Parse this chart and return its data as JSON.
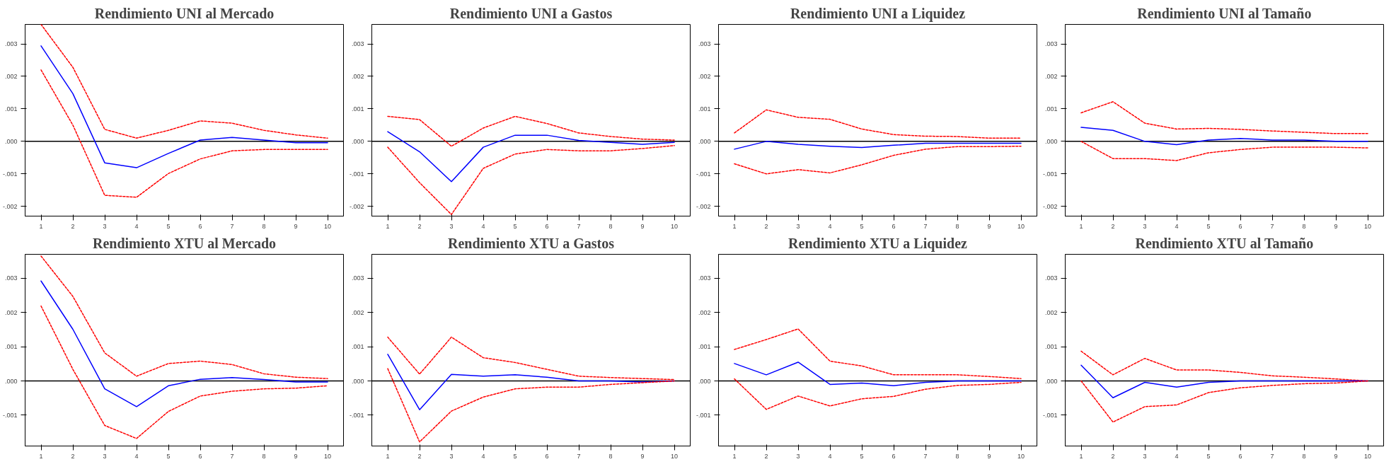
{
  "chart_data": [
    {
      "type": "line",
      "title": "Rendimiento UNI al Mercado",
      "x": [
        1,
        2,
        3,
        4,
        5,
        6,
        7,
        8,
        9,
        10
      ],
      "xlim": [
        0.5,
        10.5
      ],
      "xticks": [
        1,
        2,
        3,
        4,
        5,
        6,
        7,
        8,
        9,
        10
      ],
      "ylim": [
        -0.0023,
        0.0036
      ],
      "yticks": [
        {
          "value": -0.002,
          "label": "-.002"
        },
        {
          "value": -0.001,
          "label": "-.001"
        },
        {
          "value": 0,
          "label": ".000"
        },
        {
          "value": 0.001,
          "label": ".001"
        },
        {
          "value": 0.002,
          "label": ".002"
        },
        {
          "value": 0.003,
          "label": ".003"
        }
      ],
      "grid": false,
      "ref_lines": [
        {
          "axis": "y",
          "value": 0,
          "color": "#000000",
          "line_style": "solid"
        }
      ],
      "series": [
        {
          "color": "#ff0000",
          "line_style": "dotted",
          "values": [
            0.0036,
            0.00228,
            0.00037,
            0.0001,
            0.00034,
            0.00063,
            0.00056,
            0.00034,
            0.0002,
            0.0001
          ]
        },
        {
          "color": "#0000ff",
          "line_style": "solid",
          "values": [
            0.00294,
            0.00147,
            -0.00066,
            -0.00081,
            -0.00037,
            4e-05,
            0.00012,
            4e-05,
            -4e-05,
            -4e-05
          ]
        },
        {
          "color": "#ff0000",
          "line_style": "dotted",
          "values": [
            0.0022,
            0.0005,
            -0.00166,
            -0.00172,
            -0.00099,
            -0.00054,
            -0.00029,
            -0.00025,
            -0.00025,
            -0.00025
          ]
        }
      ]
    },
    {
      "type": "line",
      "title": "Rendimiento UNI a Gastos",
      "x": [
        1,
        2,
        3,
        4,
        5,
        6,
        7,
        8,
        9,
        10
      ],
      "xlim": [
        0.5,
        10.5
      ],
      "xticks": [
        1,
        2,
        3,
        4,
        5,
        6,
        7,
        8,
        9,
        10
      ],
      "ylim": [
        -0.0023,
        0.0036
      ],
      "yticks": [
        {
          "value": -0.002,
          "label": "-.002"
        },
        {
          "value": -0.001,
          "label": "-.001"
        },
        {
          "value": 0,
          "label": ".000"
        },
        {
          "value": 0.001,
          "label": ".001"
        },
        {
          "value": 0.002,
          "label": ".002"
        },
        {
          "value": 0.003,
          "label": ".003"
        }
      ],
      "grid": false,
      "ref_lines": [
        {
          "axis": "y",
          "value": 0,
          "color": "#000000",
          "line_style": "solid"
        }
      ],
      "series": [
        {
          "color": "#ff0000",
          "line_style": "dotted",
          "values": [
            0.00077,
            0.00067,
            -0.00015,
            0.00041,
            0.00077,
            0.00055,
            0.00026,
            0.00015,
            7e-05,
            4e-05
          ]
        },
        {
          "color": "#0000ff",
          "line_style": "solid",
          "values": [
            0.0003,
            -0.00032,
            -0.00124,
            -0.00018,
            0.00019,
            0.00019,
            3e-05,
            -3e-05,
            -9e-05,
            -3e-05
          ]
        },
        {
          "color": "#ff0000",
          "line_style": "dotted",
          "values": [
            -0.00018,
            -0.00127,
            -0.00225,
            -0.00083,
            -0.00039,
            -0.00025,
            -0.00029,
            -0.00029,
            -0.00022,
            -0.00013
          ]
        }
      ]
    },
    {
      "type": "line",
      "title": "Rendimiento UNI a Liquidez",
      "x": [
        1,
        2,
        3,
        4,
        5,
        6,
        7,
        8,
        9,
        10
      ],
      "xlim": [
        0.5,
        10.5
      ],
      "xticks": [
        1,
        2,
        3,
        4,
        5,
        6,
        7,
        8,
        9,
        10
      ],
      "ylim": [
        -0.0023,
        0.0036
      ],
      "yticks": [
        {
          "value": -0.002,
          "label": "-.002"
        },
        {
          "value": -0.001,
          "label": "-.001"
        },
        {
          "value": 0,
          "label": ".000"
        },
        {
          "value": 0.001,
          "label": ".001"
        },
        {
          "value": 0.002,
          "label": ".002"
        },
        {
          "value": 0.003,
          "label": ".003"
        }
      ],
      "grid": false,
      "ref_lines": [
        {
          "axis": "y",
          "value": 0,
          "color": "#000000",
          "line_style": "solid"
        }
      ],
      "series": [
        {
          "color": "#ff0000",
          "line_style": "dotted",
          "values": [
            0.00026,
            0.00097,
            0.00074,
            0.00068,
            0.00038,
            0.00021,
            0.00016,
            0.00015,
            0.0001,
            0.0001
          ]
        },
        {
          "color": "#0000ff",
          "line_style": "solid",
          "values": [
            -0.00024,
            0,
            -9e-05,
            -0.00015,
            -0.00019,
            -0.00012,
            -6e-05,
            -6e-05,
            -6e-05,
            -6e-05
          ]
        },
        {
          "color": "#ff0000",
          "line_style": "dotted",
          "values": [
            -0.00069,
            -0.001,
            -0.00087,
            -0.00097,
            -0.00072,
            -0.00043,
            -0.00024,
            -0.00016,
            -0.00016,
            -0.00015
          ]
        }
      ]
    },
    {
      "type": "line",
      "title": "Rendimiento UNI al Tamaño",
      "x": [
        1,
        2,
        3,
        4,
        5,
        6,
        7,
        8,
        9,
        10
      ],
      "xlim": [
        0.5,
        10.5
      ],
      "xticks": [
        1,
        2,
        3,
        4,
        5,
        6,
        7,
        8,
        9,
        10
      ],
      "ylim": [
        -0.0023,
        0.0036
      ],
      "yticks": [
        {
          "value": -0.002,
          "label": "-.002"
        },
        {
          "value": -0.001,
          "label": "-.001"
        },
        {
          "value": 0,
          "label": ".000"
        },
        {
          "value": 0.001,
          "label": ".001"
        },
        {
          "value": 0.002,
          "label": ".002"
        },
        {
          "value": 0.003,
          "label": ".003"
        }
      ],
      "grid": false,
      "ref_lines": [
        {
          "axis": "y",
          "value": 0,
          "color": "#000000",
          "line_style": "solid"
        }
      ],
      "series": [
        {
          "color": "#ff0000",
          "line_style": "dotted",
          "values": [
            0.00088,
            0.00122,
            0.00056,
            0.00038,
            0.0004,
            0.00037,
            0.00032,
            0.00028,
            0.00024,
            0.00024
          ]
        },
        {
          "color": "#0000ff",
          "line_style": "solid",
          "values": [
            0.00043,
            0.00034,
            0,
            -0.0001,
            4e-05,
            9e-05,
            4e-05,
            4e-05,
            0,
            0
          ]
        },
        {
          "color": "#ff0000",
          "line_style": "dotted",
          "values": [
            0,
            -0.00053,
            -0.00053,
            -0.00059,
            -0.00035,
            -0.00025,
            -0.00018,
            -0.00018,
            -0.00018,
            -0.0002
          ]
        }
      ]
    },
    {
      "type": "line",
      "title": "Rendimiento XTU al Mercado",
      "x": [
        1,
        2,
        3,
        4,
        5,
        6,
        7,
        8,
        9,
        10
      ],
      "xlim": [
        0.5,
        10.5
      ],
      "xticks": [
        1,
        2,
        3,
        4,
        5,
        6,
        7,
        8,
        9,
        10
      ],
      "ylim": [
        -0.0019,
        0.0037
      ],
      "yticks": [
        {
          "value": -0.001,
          "label": "-.001"
        },
        {
          "value": 0,
          "label": ".000"
        },
        {
          "value": 0.001,
          "label": ".001"
        },
        {
          "value": 0.002,
          "label": ".002"
        },
        {
          "value": 0.003,
          "label": ".003"
        }
      ],
      "grid": false,
      "ref_lines": [
        {
          "axis": "y",
          "value": 0,
          "color": "#000000",
          "line_style": "solid"
        }
      ],
      "series": [
        {
          "color": "#ff0000",
          "line_style": "dotted",
          "values": [
            0.00365,
            0.00247,
            0.00082,
            0.00014,
            0.00051,
            0.00058,
            0.00048,
            0.00021,
            0.00011,
            7e-05
          ]
        },
        {
          "color": "#0000ff",
          "line_style": "solid",
          "values": [
            0.00292,
            0.00151,
            -0.00023,
            -0.00075,
            -0.00014,
            5e-05,
            0.0001,
            4e-05,
            -3e-05,
            -3e-05
          ]
        },
        {
          "color": "#ff0000",
          "line_style": "dotted",
          "values": [
            0.00219,
            0.00034,
            -0.0013,
            -0.00168,
            -0.00089,
            -0.00044,
            -0.0003,
            -0.00023,
            -0.00021,
            -0.00014
          ]
        }
      ]
    },
    {
      "type": "line",
      "title": "Rendimiento XTU a Gastos",
      "x": [
        1,
        2,
        3,
        4,
        5,
        6,
        7,
        8,
        9,
        10
      ],
      "xlim": [
        0.5,
        10.5
      ],
      "xticks": [
        1,
        2,
        3,
        4,
        5,
        6,
        7,
        8,
        9,
        10
      ],
      "ylim": [
        -0.0019,
        0.0037
      ],
      "yticks": [
        {
          "value": -0.001,
          "label": "-.001"
        },
        {
          "value": 0,
          "label": ".000"
        },
        {
          "value": 0.001,
          "label": ".001"
        },
        {
          "value": 0.002,
          "label": ".002"
        },
        {
          "value": 0.003,
          "label": ".003"
        }
      ],
      "grid": false,
      "ref_lines": [
        {
          "axis": "y",
          "value": 0,
          "color": "#000000",
          "line_style": "solid"
        }
      ],
      "series": [
        {
          "color": "#ff0000",
          "line_style": "dotted",
          "values": [
            0.00128,
            0.0002,
            0.00128,
            0.00068,
            0.00054,
            0.00034,
            0.00014,
            0.0001,
            7e-05,
            4e-05
          ]
        },
        {
          "color": "#0000ff",
          "line_style": "solid",
          "values": [
            0.00078,
            -0.00084,
            0.00019,
            0.00014,
            0.00018,
            0.00011,
            0,
            0,
            -3e-05,
            0
          ]
        },
        {
          "color": "#ff0000",
          "line_style": "dotted",
          "values": [
            0.00036,
            -0.00178,
            -0.00088,
            -0.00047,
            -0.00023,
            -0.00018,
            -0.00018,
            -0.0001,
            -5e-05,
            0
          ]
        }
      ]
    },
    {
      "type": "line",
      "title": "Rendimiento XTU a Liquidez",
      "x": [
        1,
        2,
        3,
        4,
        5,
        6,
        7,
        8,
        9,
        10
      ],
      "xlim": [
        0.5,
        10.5
      ],
      "xticks": [
        1,
        2,
        3,
        4,
        5,
        6,
        7,
        8,
        9,
        10
      ],
      "ylim": [
        -0.0019,
        0.0037
      ],
      "yticks": [
        {
          "value": -0.001,
          "label": "-.001"
        },
        {
          "value": 0,
          "label": ".000"
        },
        {
          "value": 0.001,
          "label": ".001"
        },
        {
          "value": 0.002,
          "label": ".002"
        },
        {
          "value": 0.003,
          "label": ".003"
        }
      ],
      "grid": false,
      "ref_lines": [
        {
          "axis": "y",
          "value": 0,
          "color": "#000000",
          "line_style": "solid"
        }
      ],
      "series": [
        {
          "color": "#ff0000",
          "line_style": "dotted",
          "values": [
            0.00092,
            0.00121,
            0.00152,
            0.00058,
            0.00044,
            0.00018,
            0.00018,
            0.00018,
            0.00013,
            7e-05
          ]
        },
        {
          "color": "#0000ff",
          "line_style": "solid",
          "values": [
            0.00051,
            0.00018,
            0.00055,
            -0.0001,
            -6e-05,
            -0.00014,
            -4e-05,
            0,
            0,
            0
          ]
        },
        {
          "color": "#ff0000",
          "line_style": "dotted",
          "values": [
            6e-05,
            -0.00083,
            -0.00044,
            -0.00073,
            -0.00052,
            -0.00045,
            -0.00024,
            -0.00013,
            -0.0001,
            -4e-05
          ]
        }
      ]
    },
    {
      "type": "line",
      "title": "Rendimiento XTU al Tamaño",
      "x": [
        1,
        2,
        3,
        4,
        5,
        6,
        7,
        8,
        9,
        10
      ],
      "xlim": [
        0.5,
        10.5
      ],
      "xticks": [
        1,
        2,
        3,
        4,
        5,
        6,
        7,
        8,
        9,
        10
      ],
      "ylim": [
        -0.0019,
        0.0037
      ],
      "yticks": [
        {
          "value": -0.001,
          "label": "-.001"
        },
        {
          "value": 0,
          "label": ".000"
        },
        {
          "value": 0.001,
          "label": ".001"
        },
        {
          "value": 0.002,
          "label": ".002"
        },
        {
          "value": 0.003,
          "label": ".003"
        }
      ],
      "grid": false,
      "ref_lines": [
        {
          "axis": "y",
          "value": 0,
          "color": "#000000",
          "line_style": "solid"
        }
      ],
      "series": [
        {
          "color": "#ff0000",
          "line_style": "dotted",
          "values": [
            0.00087,
            0.00018,
            0.00066,
            0.00032,
            0.00032,
            0.00025,
            0.00015,
            0.00011,
            6e-05,
            0
          ]
        },
        {
          "color": "#0000ff",
          "line_style": "solid",
          "values": [
            0.00046,
            -0.00049,
            -4e-05,
            -0.00018,
            -4e-05,
            0,
            0,
            0,
            0,
            0
          ]
        },
        {
          "color": "#ff0000",
          "line_style": "dotted",
          "values": [
            0,
            -0.0012,
            -0.00075,
            -0.0007,
            -0.00034,
            -0.0002,
            -0.00013,
            -8e-05,
            -6e-05,
            0
          ]
        }
      ]
    }
  ]
}
